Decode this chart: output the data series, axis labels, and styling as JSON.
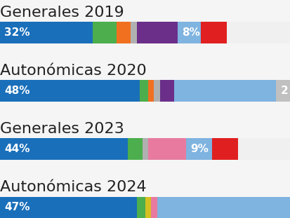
{
  "elections": [
    {
      "label": "Generales 2019",
      "segments": [
        {
          "value": 32,
          "color": "#1a6fba",
          "text": "32%",
          "text_color": "white"
        },
        {
          "value": 8,
          "color": "#4cae4c",
          "text": "",
          "text_color": "white"
        },
        {
          "value": 5,
          "color": "#f07020",
          "text": "",
          "text_color": "white"
        },
        {
          "value": 2,
          "color": "#b0b0b0",
          "text": "",
          "text_color": "white"
        },
        {
          "value": 14,
          "color": "#6b2f8a",
          "text": "",
          "text_color": "white"
        },
        {
          "value": 8,
          "color": "#7fb3e0",
          "text": "8%",
          "text_color": "white"
        },
        {
          "value": 9,
          "color": "#e02020",
          "text": "",
          "text_color": "white"
        },
        {
          "value": 22,
          "color": "#f0f0f0",
          "text": "",
          "text_color": "white"
        }
      ]
    },
    {
      "label": "Autonómicas 2020",
      "segments": [
        {
          "value": 48,
          "color": "#1a6fba",
          "text": "48%",
          "text_color": "white"
        },
        {
          "value": 3,
          "color": "#4cae4c",
          "text": "",
          "text_color": "white"
        },
        {
          "value": 2,
          "color": "#f07020",
          "text": "",
          "text_color": "white"
        },
        {
          "value": 2,
          "color": "#b0b0b0",
          "text": "",
          "text_color": "white"
        },
        {
          "value": 5,
          "color": "#6b2f8a",
          "text": "",
          "text_color": "white"
        },
        {
          "value": 35,
          "color": "#7fb3e0",
          "text": "",
          "text_color": "white"
        },
        {
          "value": 5,
          "color": "#c0c0c0",
          "text": "2",
          "text_color": "white"
        }
      ]
    },
    {
      "label": "Generales 2023",
      "segments": [
        {
          "value": 44,
          "color": "#1a6fba",
          "text": "44%",
          "text_color": "white"
        },
        {
          "value": 5,
          "color": "#4cae4c",
          "text": "",
          "text_color": "white"
        },
        {
          "value": 2,
          "color": "#b0b0b0",
          "text": "",
          "text_color": "white"
        },
        {
          "value": 13,
          "color": "#e87aa0",
          "text": "",
          "text_color": "white"
        },
        {
          "value": 9,
          "color": "#7fb3e0",
          "text": "9%",
          "text_color": "white"
        },
        {
          "value": 9,
          "color": "#e02020",
          "text": "",
          "text_color": "white"
        },
        {
          "value": 18,
          "color": "#f0f0f0",
          "text": "",
          "text_color": "white"
        }
      ]
    },
    {
      "label": "Autonómicas 2024",
      "segments": [
        {
          "value": 47,
          "color": "#1a6fba",
          "text": "47%",
          "text_color": "white"
        },
        {
          "value": 3,
          "color": "#4cae4c",
          "text": "",
          "text_color": "white"
        },
        {
          "value": 2,
          "color": "#d4c020",
          "text": "",
          "text_color": "white"
        },
        {
          "value": 2,
          "color": "#e87aa0",
          "text": "",
          "text_color": "white"
        },
        {
          "value": 46,
          "color": "#7fb3e0",
          "text": "",
          "text_color": "white"
        }
      ]
    }
  ],
  "background_color": "#f5f5f5",
  "title_fontsize": 16,
  "bar_height": 0.55,
  "label_fontsize": 14,
  "pct_fontsize": 11
}
